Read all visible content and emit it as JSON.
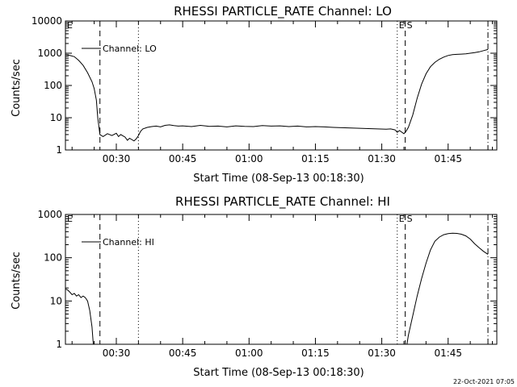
{
  "chart_data": [
    {
      "type": "line",
      "title": "RHESSI PARTICLE_RATE Channel: LO",
      "xlabel": "Start Time (08-Sep-13 00:18:30)",
      "ylabel": "Counts/sec",
      "yscale": "log",
      "ylim": [
        1,
        10000
      ],
      "xlim": [
        18.5,
        116
      ],
      "x_unit": "minutes after 00:00 UT",
      "xtick_labels": [
        "00:30",
        "00:45",
        "01:00",
        "01:15",
        "01:30",
        "01:45"
      ],
      "xtick_values": [
        30,
        45,
        60,
        75,
        90,
        105
      ],
      "ytick_labels": [
        "1",
        "10",
        "100",
        "1000",
        "10000"
      ],
      "ytick_values": [
        1,
        10,
        100,
        1000,
        10000
      ],
      "legend": "upper-left",
      "grid": false,
      "markers": [
        {
          "label": "E",
          "x": 18.5,
          "style": "solid"
        },
        {
          "label": "",
          "x": 26.3,
          "style": "dashed"
        },
        {
          "label": "",
          "x": 35.0,
          "style": "dotted"
        },
        {
          "label": "E",
          "x": 93.5,
          "style": "dotted"
        },
        {
          "label": "S",
          "x": 95.3,
          "style": "dashed"
        },
        {
          "label": "",
          "x": 114.0,
          "style": "dashdot"
        }
      ],
      "series": [
        {
          "name": "Channel: LO",
          "x": [
            18.5,
            19.5,
            20.5,
            21.5,
            22.5,
            23.5,
            24.5,
            25.0,
            25.5,
            25.8,
            26.3,
            27.0,
            28.0,
            29.0,
            30.0,
            30.5,
            31.0,
            32.0,
            32.5,
            33.0,
            34.0,
            34.5,
            35.0,
            35.5,
            36.0,
            37.0,
            38.0,
            39.0,
            40.0,
            41.0,
            42.0,
            43.0,
            44.0,
            45.0,
            47.0,
            49.0,
            51.0,
            53.0,
            55.0,
            57.0,
            59.0,
            61.0,
            63.0,
            65.0,
            67.0,
            69.0,
            71.0,
            73.0,
            75.0,
            77.0,
            79.0,
            81.0,
            83.0,
            85.0,
            87.0,
            89.0,
            91.0,
            92.0,
            93.0,
            93.5,
            94.0,
            95.0,
            95.5,
            96.0,
            97.0,
            98.0,
            99.0,
            100.0,
            101.0,
            102.0,
            103.0,
            104.0,
            105.0,
            106.0,
            107.0,
            108.0,
            109.0,
            110.0,
            111.0,
            112.0,
            113.0,
            114.0
          ],
          "values": [
            900,
            850,
            780,
            600,
            420,
            250,
            130,
            80,
            35,
            10,
            3,
            2.6,
            3.2,
            2.8,
            3.3,
            2.6,
            3.0,
            2.5,
            2.0,
            2.3,
            1.9,
            2.2,
            2.8,
            3.8,
            4.5,
            5.0,
            5.3,
            5.5,
            5.2,
            5.8,
            6.0,
            5.7,
            5.5,
            5.6,
            5.3,
            5.8,
            5.4,
            5.5,
            5.2,
            5.6,
            5.4,
            5.3,
            5.7,
            5.5,
            5.6,
            5.3,
            5.5,
            5.2,
            5.3,
            5.2,
            5.0,
            4.9,
            4.8,
            4.7,
            4.6,
            4.5,
            4.4,
            4.5,
            4.2,
            3.5,
            4.0,
            3.2,
            3.8,
            5.0,
            12,
            40,
            110,
            230,
            380,
            520,
            650,
            760,
            850,
            900,
            920,
            940,
            960,
            1000,
            1050,
            1100,
            1200,
            1300
          ]
        }
      ]
    },
    {
      "type": "line",
      "title": "RHESSI PARTICLE_RATE Channel: HI",
      "xlabel": "Start Time (08-Sep-13 00:18:30)",
      "ylabel": "Counts/sec",
      "yscale": "log",
      "ylim": [
        1,
        1000
      ],
      "xlim": [
        18.5,
        116
      ],
      "x_unit": "minutes after 00:00 UT",
      "xtick_labels": [
        "00:30",
        "00:45",
        "01:00",
        "01:15",
        "01:30",
        "01:45"
      ],
      "xtick_values": [
        30,
        45,
        60,
        75,
        90,
        105
      ],
      "ytick_labels": [
        "1",
        "10",
        "100",
        "1000"
      ],
      "ytick_values": [
        1,
        10,
        100,
        1000
      ],
      "legend": "upper-left",
      "grid": false,
      "markers": [
        {
          "label": "E",
          "x": 18.5,
          "style": "solid"
        },
        {
          "label": "",
          "x": 26.3,
          "style": "dashed"
        },
        {
          "label": "",
          "x": 35.0,
          "style": "dotted"
        },
        {
          "label": "E",
          "x": 93.5,
          "style": "dotted"
        },
        {
          "label": "S",
          "x": 95.3,
          "style": "dashed"
        },
        {
          "label": "",
          "x": 114.0,
          "style": "dashdot"
        }
      ],
      "series": [
        {
          "name": "Channel: HI",
          "x": [
            18.5,
            19.0,
            19.5,
            20.0,
            20.5,
            21.0,
            21.5,
            22.0,
            22.5,
            23.0,
            23.5,
            24.0,
            24.5,
            24.8,
            95.7,
            96.0,
            97.0,
            98.0,
            99.0,
            100.0,
            101.0,
            102.0,
            103.0,
            104.0,
            105.0,
            106.0,
            107.0,
            108.0,
            109.0,
            110.0,
            111.0,
            112.0,
            113.0,
            114.0
          ],
          "values": [
            19,
            18,
            16,
            14,
            15,
            13,
            14,
            12,
            13,
            12,
            10,
            6,
            2.5,
            1.0,
            1.0,
            1.6,
            4.5,
            13,
            33,
            75,
            150,
            240,
            300,
            340,
            360,
            370,
            365,
            350,
            320,
            270,
            210,
            170,
            140,
            120
          ]
        }
      ]
    }
  ],
  "footer": {
    "date_stamp": "22-Oct-2021 07:05"
  }
}
